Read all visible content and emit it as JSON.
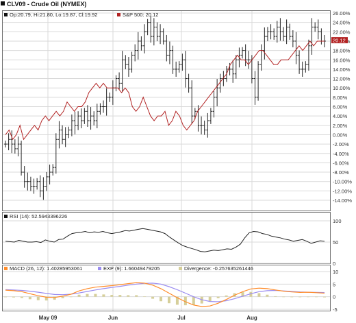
{
  "title": "CLV09 - Crude Oil (NYMEX)",
  "colors": {
    "bars": "#222222",
    "spx": "#b22222",
    "rsi": "#222222",
    "macd": "#ff8c2a",
    "exp": "#9a8cf0",
    "divergence": "#d6cf9a",
    "last_badge": "#b22222"
  },
  "price_legend": {
    "ohlc": "Op:20.79, Hi:21.80, Lo:19.87, Cl:19.92",
    "spx": "S&P 500: 20.12"
  },
  "last_value": "20.12",
  "price_axis": [
    "26.00%",
    "24.00%",
    "22.00%",
    "20.00%",
    "18.00%",
    "16.00%",
    "14.00%",
    "12.00%",
    "10.00%",
    "8.00%",
    "6.00%",
    "4.00%",
    "2.00%",
    "0.00%",
    "-2.00%",
    "-4.00%",
    "-6.00%",
    "-8.00%",
    "-10.00%",
    "-12.00%",
    "-14.00%"
  ],
  "rsi_legend": "RSI (14): 52.5943396226",
  "rsi_axis": [
    "100",
    "50",
    "0"
  ],
  "macd_legend": {
    "macd": "MACD (26, 12): 1.40285953061",
    "exp": "EXP (9): 1.66049479205",
    "div": "Divergence: -0.257635261446"
  },
  "macd_axis": [
    "10",
    "5",
    "0",
    "-5"
  ],
  "x_labels": [
    "May 09",
    "Jun",
    "Jul",
    "Aug"
  ],
  "chart_data": {
    "type": "line",
    "title": "CLV09 - Crude Oil (NYMEX)",
    "x_labels": [
      "May 09",
      "Jun",
      "Jul",
      "Aug"
    ],
    "price_pane": {
      "ylim": [
        -14,
        26
      ],
      "bar_closes_pct": [
        -2,
        -1,
        -2,
        -3,
        -2,
        -8,
        -10,
        -10,
        -11,
        -11,
        -10,
        -12,
        -11,
        -9,
        -8,
        -7,
        -1,
        1,
        -1,
        0,
        1,
        3,
        2,
        4,
        3,
        5,
        3,
        4,
        3,
        5,
        6,
        6,
        8,
        8,
        10,
        12,
        11,
        16,
        15,
        14,
        17,
        18,
        20,
        19,
        22,
        24,
        21,
        23,
        21,
        22,
        20,
        17,
        18,
        14,
        14,
        15,
        16,
        12,
        10,
        4,
        5,
        2,
        2,
        1,
        3,
        5,
        8,
        10,
        12,
        12,
        14,
        14,
        13,
        16,
        17,
        18,
        16,
        16,
        12,
        8,
        15,
        18,
        21,
        22,
        22,
        21,
        23,
        22,
        21,
        23,
        21,
        20,
        17,
        14,
        14,
        15,
        19,
        23,
        23,
        22,
        20,
        20
      ],
      "spx_pct": [
        0,
        1,
        -1,
        0,
        2,
        -1,
        0,
        1,
        2,
        1,
        3,
        4,
        3,
        4,
        5,
        4,
        5,
        7,
        6,
        5,
        6,
        6,
        7,
        9,
        10,
        11,
        10,
        11,
        10,
        10,
        10,
        10,
        9,
        10,
        9,
        6,
        5,
        6,
        8,
        6,
        4,
        3,
        4,
        4,
        5,
        2,
        3,
        5,
        4,
        2,
        1,
        2,
        3,
        5,
        6,
        7,
        8,
        9,
        10,
        11,
        12,
        13,
        15,
        16,
        17,
        16,
        16,
        15,
        16,
        17,
        18,
        18,
        17,
        16,
        15,
        15,
        16,
        16,
        16,
        17,
        18,
        19,
        18,
        19,
        20,
        19,
        20,
        20,
        20
      ],
      "last_close": 19.92,
      "last_spx": 20.12
    },
    "rsi_pane": {
      "label": "RSI (14)",
      "ylim": [
        0,
        100
      ],
      "last": 52.59,
      "values": [
        52,
        51,
        50,
        54,
        52,
        50,
        50,
        51,
        49,
        55,
        52,
        50,
        56,
        57,
        64,
        70,
        72,
        73,
        75,
        72,
        74,
        73,
        75,
        72,
        70,
        72,
        74,
        77,
        76,
        78,
        80,
        82,
        80,
        78,
        76,
        74,
        70,
        62,
        55,
        48,
        42,
        38,
        35,
        32,
        28,
        27,
        29,
        31,
        30,
        32,
        34,
        33,
        38,
        45,
        60,
        72,
        75,
        74,
        70,
        68,
        64,
        62,
        60,
        57,
        55,
        52,
        54,
        56,
        52,
        47,
        50,
        53,
        52
      ]
    },
    "macd_pane": {
      "ylim": [
        -5,
        10
      ],
      "macd_last": 1.40285953061,
      "exp_last": 1.66049479205,
      "divergence_last": -0.257635261446,
      "macd": [
        2.6,
        2.4,
        2,
        1.2,
        0.4,
        -0.2,
        -0.3,
        0.2,
        1,
        2.3,
        3.2,
        3.8,
        4.1,
        4.4,
        4.8,
        5.2,
        5.6,
        5.4,
        4.6,
        3.2,
        1.4,
        -0.4,
        -2,
        -3.3,
        -3.9,
        -3.7,
        -2.6,
        -1.1,
        0.6,
        2,
        3.1,
        3.4,
        3.2,
        2.7,
        2.2,
        1.9,
        1.7,
        1.8,
        1.6,
        1.4
      ],
      "exp": [
        2.8,
        2.7,
        2.5,
        2.2,
        1.8,
        1.3,
        0.9,
        0.8,
        1,
        1.5,
        2.1,
        2.7,
        3.2,
        3.7,
        4.1,
        4.6,
        5,
        5.3,
        5.4,
        5,
        4,
        2.8,
        1.4,
        0,
        -1.2,
        -1.9,
        -2,
        -1.6,
        -0.8,
        0.2,
        1.2,
        2,
        2.4,
        2.5,
        2.3,
        2.1,
        1.9,
        1.8,
        1.7,
        1.66
      ],
      "divergence": [
        -0.2,
        -0.3,
        -0.5,
        -1,
        -1.4,
        -1.5,
        -1.2,
        -0.6,
        0,
        0.8,
        1.1,
        1.1,
        0.9,
        0.7,
        0.7,
        0.6,
        0.6,
        0.1,
        -0.8,
        -1.8,
        -2.6,
        -3.2,
        -3.4,
        -3.3,
        -2.7,
        -1.8,
        -0.6,
        0.5,
        1.4,
        1.8,
        1.9,
        1.4,
        0.8,
        0.2,
        -0.1,
        -0.2,
        -0.2,
        0,
        -0.1,
        -0.26
      ]
    }
  }
}
